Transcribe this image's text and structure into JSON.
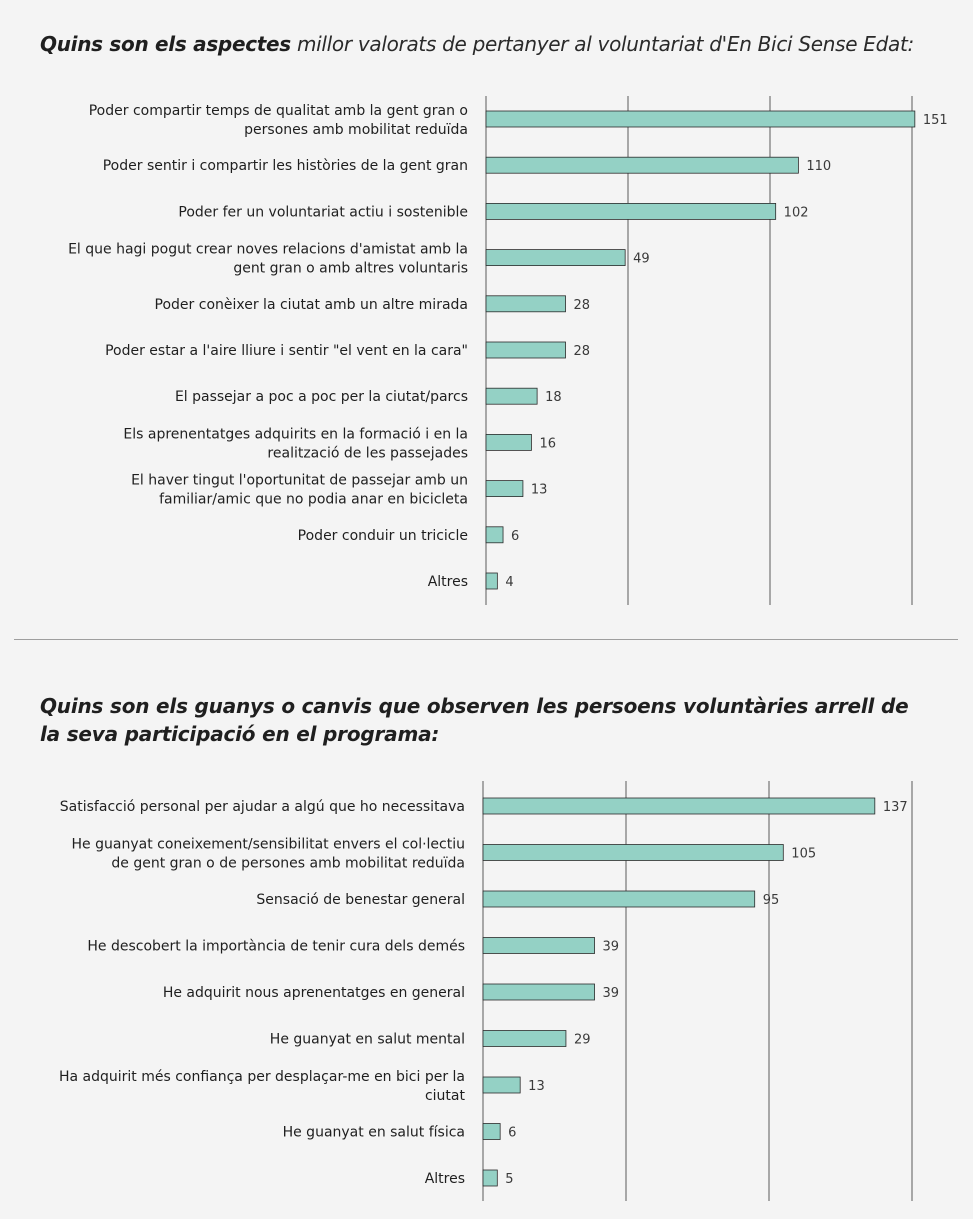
{
  "charts": [
    {
      "title_bold": "Quins son els aspectes",
      "title_rest": " millor valorats de pertanyer al voluntariat d'En Bici Sense Edat:"
    },
    {
      "title": "Quins son els guanys o canvis que observen les persoens voluntàries arrell de la seva participació en el programa:"
    }
  ],
  "chart_data": [
    {
      "type": "bar",
      "orientation": "horizontal",
      "title": "Quins son els aspectes millor valorats de pertanyer al voluntariat d'En Bici Sense Edat:",
      "categories": [
        [
          "Poder compartir temps de qualitat amb la gent gran o",
          "persones amb mobilitat reduïda"
        ],
        [
          "Poder sentir i compartir les històries de la gent gran"
        ],
        [
          "Poder fer un voluntariat actiu i sostenible"
        ],
        [
          "El que hagi pogut crear noves relacions d'amistat amb la",
          "gent gran o amb altres voluntaris"
        ],
        [
          "Poder conèixer la ciutat amb un altre mirada"
        ],
        [
          "Poder estar a l'aire lliure i sentir \"el vent en la cara\""
        ],
        [
          "El passejar a poc a poc per la ciutat/parcs"
        ],
        [
          "Els aprenentatges adquirits en la formació i en la",
          "realització de les passejades"
        ],
        [
          "El haver tingut l'oportunitat de passejar amb un",
          "familiar/amic que no podia anar en bicicleta"
        ],
        [
          "Poder conduir un tricicle"
        ],
        [
          "Altres"
        ]
      ],
      "values": [
        151,
        110,
        102,
        49,
        28,
        28,
        18,
        16,
        13,
        6,
        4
      ],
      "xlim": [
        0,
        150
      ],
      "gridlines": [
        0,
        50,
        100,
        150
      ],
      "grid": true,
      "colors": {
        "bar": "#94d1c5",
        "bar_edge": "#2b2b2b",
        "grid": "#5a5a5a"
      }
    },
    {
      "type": "bar",
      "orientation": "horizontal",
      "title": "Quins son els guanys o canvis que observen les persoens voluntàries arrell de la seva participació en el programa:",
      "categories": [
        [
          "Satisfacció personal per ajudar a algú que ho necessitava"
        ],
        [
          "He guanyat coneixement/sensibilitat envers el col·lectiu",
          "de gent gran o de persones amb mobilitat reduïda"
        ],
        [
          "Sensació de benestar general"
        ],
        [
          "He descobert la importància de tenir cura dels demés"
        ],
        [
          "He adquirit nous aprenentatges en general"
        ],
        [
          "He guanyat en salut mental"
        ],
        [
          "Ha adquirit més confiança per desplaçar-me en bici per la",
          "ciutat"
        ],
        [
          "He guanyat en salut física"
        ],
        [
          "Altres"
        ]
      ],
      "values": [
        137,
        105,
        95,
        39,
        39,
        29,
        13,
        6,
        5
      ],
      "xlim": [
        0,
        150
      ],
      "gridlines": [
        0,
        50,
        100,
        150
      ],
      "grid": true,
      "colors": {
        "bar": "#94d1c5",
        "bar_edge": "#2b2b2b",
        "grid": "#5a5a5a"
      }
    }
  ]
}
